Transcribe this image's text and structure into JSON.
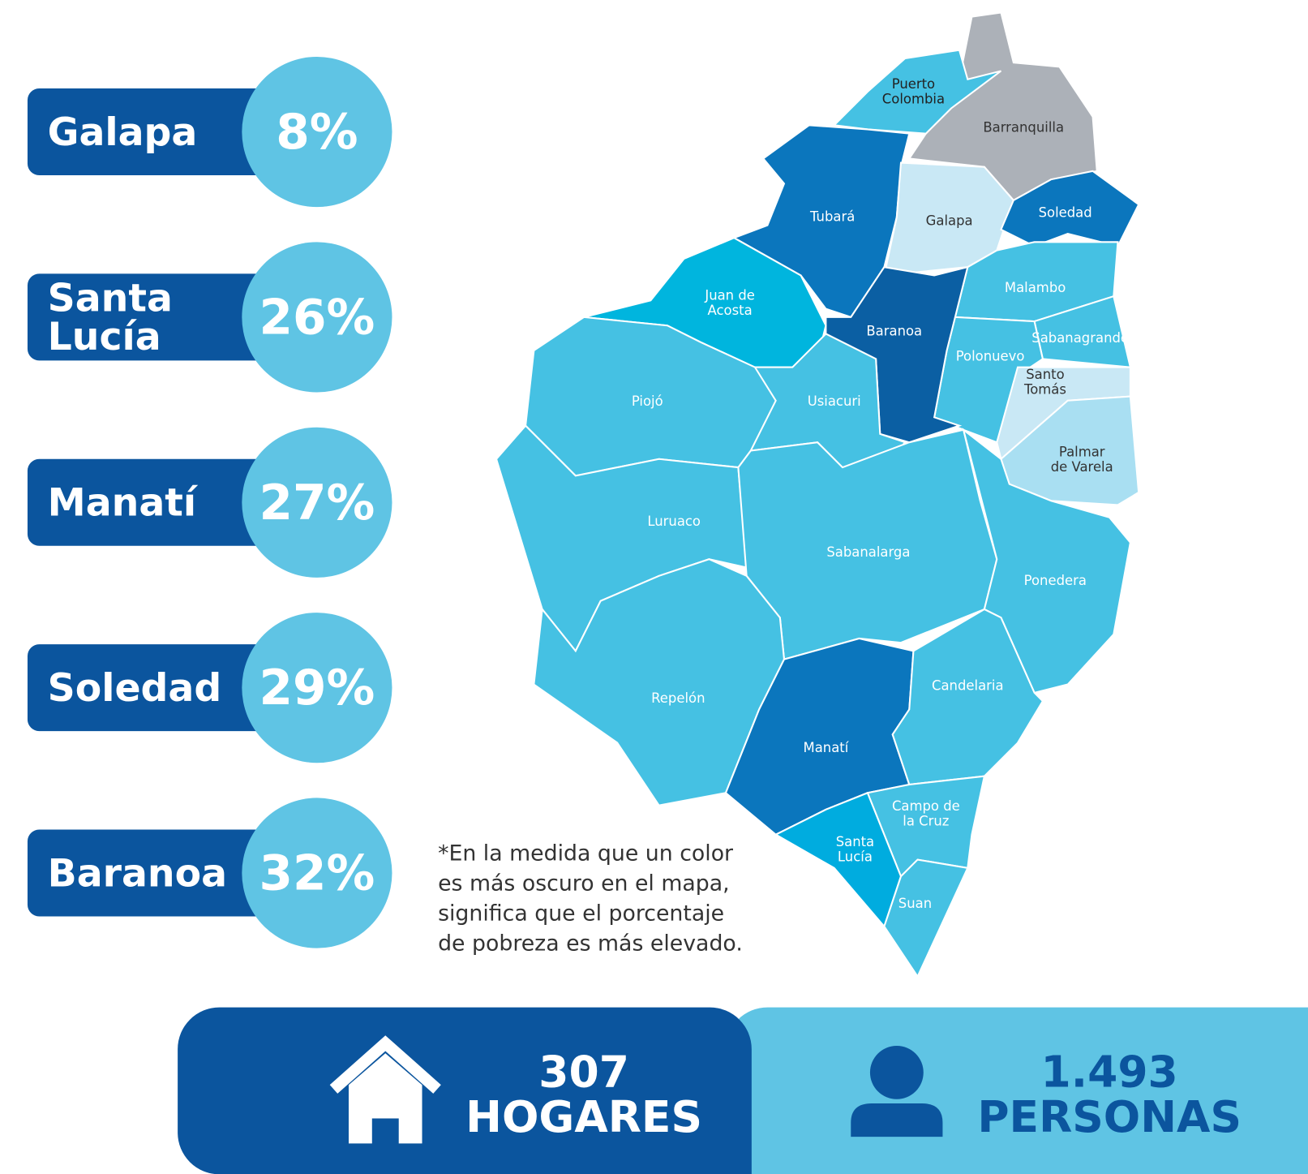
{
  "stats": [
    {
      "name": "Galapa",
      "value": "8%"
    },
    {
      "name": "Santa Lucía",
      "value": "26%"
    },
    {
      "name": "Manatí",
      "value": "27%"
    },
    {
      "name": "Soledad",
      "value": "29%"
    },
    {
      "name": "Baranoa",
      "value": "32%"
    }
  ],
  "map": {
    "regions": [
      {
        "lines": [
          "Barranquilla"
        ]
      },
      {
        "lines": [
          "Puerto",
          "Colombia"
        ]
      },
      {
        "lines": [
          "Tubará"
        ]
      },
      {
        "lines": [
          "Galapa"
        ]
      },
      {
        "lines": [
          "Soledad"
        ]
      },
      {
        "lines": [
          "Malambo"
        ]
      },
      {
        "lines": [
          "Sabanagrande"
        ]
      },
      {
        "lines": [
          "Polonuevo"
        ]
      },
      {
        "lines": [
          "Santo",
          "Tomás"
        ]
      },
      {
        "lines": [
          "Palmar",
          "de Varela"
        ]
      },
      {
        "lines": [
          "Baranoa"
        ]
      },
      {
        "lines": [
          "Juan de",
          "Acosta"
        ]
      },
      {
        "lines": [
          "Usiacuri"
        ]
      },
      {
        "lines": [
          "Piojó"
        ]
      },
      {
        "lines": [
          "Luruaco"
        ]
      },
      {
        "lines": [
          "Sabanalarga"
        ]
      },
      {
        "lines": [
          "Ponedera"
        ]
      },
      {
        "lines": [
          "Repelón"
        ]
      },
      {
        "lines": [
          "Manatí"
        ]
      },
      {
        "lines": [
          "Candelaria"
        ]
      },
      {
        "lines": [
          "Campo de",
          "la Cruz"
        ]
      },
      {
        "lines": [
          "Santa",
          "Lucía"
        ]
      },
      {
        "lines": [
          "Suan"
        ]
      }
    ]
  },
  "note": "*En la medida que un color es más oscuro en el mapa, significa que el porcentaje de pobreza es más elevado.",
  "totals": [
    {
      "value": "307",
      "label": "HOGARES"
    },
    {
      "value": "1.493",
      "label": "PERSONAS"
    }
  ]
}
